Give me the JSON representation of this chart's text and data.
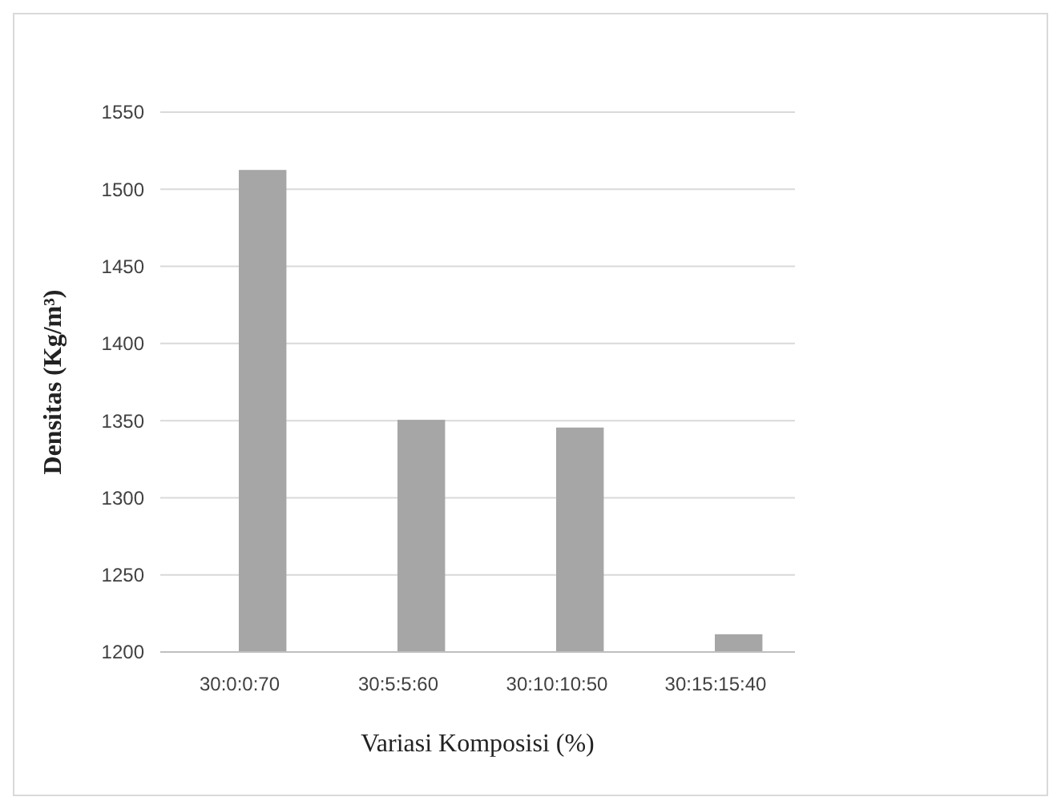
{
  "chart_data": {
    "type": "bar",
    "xlabel": "Variasi Komposisi (%)",
    "ylabel": "Densitas (Kg/m³)",
    "categories": [
      "30:0:0:70",
      "30:5:5:60",
      "30:10:10:50",
      "30:15:15:40"
    ],
    "series": [
      {
        "color": "#404040",
        "values": [
          1200,
          1200,
          1200,
          1200
        ]
      },
      {
        "color": "#a6a6a6",
        "values": [
          1512,
          1350,
          1345,
          1211
        ]
      }
    ],
    "ylim": [
      1200,
      1550
    ],
    "yticks": [
      1200,
      1250,
      1300,
      1350,
      1400,
      1450,
      1500,
      1550
    ],
    "grid": "y"
  }
}
